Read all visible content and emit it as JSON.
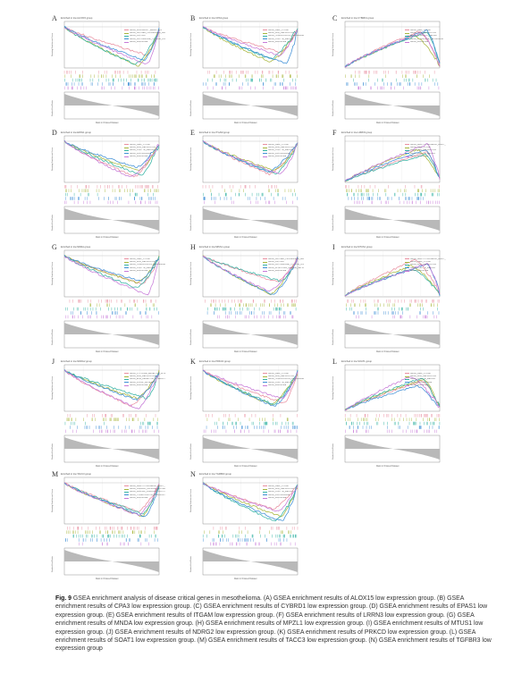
{
  "figure": {
    "caption_label": "Fig. 9",
    "caption_text": "GSEA enrichment analysis of disease critical genes in mesothelioma. (A) GSEA enrichment results of ALOX15 low expression group. (B) GSEA enrichment results of CPA3 low expression group. (C) GSEA enrichment results of CYBRD1 low expression group. (D) GSEA enrichment results of EPAS1 low expression group. (E) GSEA enrichment results of ITGAM low expression group. (F) GSEA enrichment results of LRRN3 low expression group. (G) GSEA enrichment results of MNDA low expression group. (H) GSEA enrichment results of MPZL1 low expression group. (I) GSEA enrichment results of MTUS1 low expression group. (J) GSEA enrichment results of NDRG2 low expression group. (K) GSEA enrichment results of PRKCD low expression group. (L) GSEA enrichment results of SOAT1 low expression group. (M) GSEA enrichment results of TACC3 low expression group. (N) GSEA enrichment results of TGFBR3 low expression group",
    "axis_labels": {
      "y_top": "Running Enrichment Score",
      "y_bottom": "Ranked List Metric",
      "x": "Rank in Ordered Dataset"
    },
    "colors": [
      "#e98fa0",
      "#a8b63c",
      "#35b3a4",
      "#3f8fd6",
      "#c77ad8"
    ],
    "panels": [
      {
        "letter": "A",
        "title": "Enriched in low ALOX15 group",
        "legend": [
          "KEGG_ALLOGRAFT_REJECTION",
          "KEGG_ANTIGEN_PROCESSING_AND_PRESENTATION",
          "KEGG_ASTHMA",
          "KEGG_AUTOIMMUNE_THYROID_DISEASE",
          "KEGG_RIBOSOME"
        ]
      },
      {
        "letter": "B",
        "title": "Enriched in low CPA3 group",
        "legend": [
          "KEGG_CELL_CYCLE",
          "KEGG_DNA_REPLICATION",
          "KEGG_HOMOLOGOUS_RECOMBINATION",
          "KEGG_OOCYTE_MEIOSIS",
          "KEGG_RIBOSOME"
        ]
      },
      {
        "letter": "C",
        "title": "Enriched in low CYBRD1 group",
        "legend": [
          "KEGG_CELL_CYCLE",
          "KEGG_DNA_REPLICATION",
          "KEGG_MISMATCH_REPAIR",
          "KEGG_PYRIMIDINE_METABOLISM",
          "KEGG_RIBOSOME"
        ]
      },
      {
        "letter": "D",
        "title": "Enriched in low EPAS1 group",
        "legend": [
          "KEGG_CELL_CYCLE",
          "KEGG_DNA_REPLICATION",
          "KEGG_OOCYTE_MEIOSIS",
          "KEGG_PROTEASOME",
          "KEGG_RIBOSOME"
        ]
      },
      {
        "letter": "E",
        "title": "Enriched in low ITGAM group",
        "legend": [
          "KEGG_CELL_CYCLE",
          "KEGG_DNA_REPLICATION",
          "KEGG_OOCYTE_MEIOSIS",
          "KEGG_PROTEASOME",
          "KEGG_RIBOSOME"
        ]
      },
      {
        "letter": "F",
        "title": "Enriched in low LRRN3 group",
        "legend": [
          "KEGG_ARRHYTHMOGENIC_RIGHT_VENTRICULAR",
          "KEGG_CELL_CYCLE",
          "KEGG_DNA_REPLICATION",
          "KEGG_OOCYTE_MEIOSIS",
          "KEGG_RIBOSOME"
        ]
      },
      {
        "letter": "G",
        "title": "Enriched in low MNDA group",
        "legend": [
          "KEGG_CELL_CYCLE",
          "KEGG_DNA_REPLICATION",
          "KEGG_HOMOLOGOUS_RECOMBINATION",
          "KEGG_OOCYTE_MEIOSIS",
          "KEGG_RIBOSOME"
        ]
      },
      {
        "letter": "H",
        "title": "Enriched in low MPZL1 group",
        "legend": [
          "KEGG_ANTIGEN_PROCESSING_AND_PRESENTATION",
          "KEGG_ASTHMA",
          "KEGG_AUTOIMMUNE_THYROID_DISEASE",
          "KEGG_INTESTINAL_IMMUNE_NETWORK",
          "KEGG_RIBOSOME"
        ]
      },
      {
        "letter": "I",
        "title": "Enriched in low MTUS1 group",
        "legend": [
          "KEGG_ARRHYTHMOGENIC_RIGHT_VENTRICULAR",
          "KEGG_CELL_CYCLE",
          "KEGG_DNA_REPLICATION",
          "KEGG_OOCYTE_MEIOSIS",
          "KEGG_RIBOSOME"
        ]
      },
      {
        "letter": "J",
        "title": "Enriched in low NDRG2 group",
        "legend": [
          "KEGG_CYTOKINE_RECEPTOR_INTERACTION",
          "KEGG_DNA_REPLICATION",
          "KEGG_ECM_RECEPTOR_INTERACTION",
          "KEGG_FOCAL_ADHESION",
          "KEGG_RIBOSOME"
        ]
      },
      {
        "letter": "K",
        "title": "Enriched in low PRKCD group",
        "legend": [
          "KEGG_CELL_CYCLE",
          "KEGG_DNA_REPLICATION",
          "KEGG_HOMOLOGOUS_RECOMBINATION",
          "KEGG_OOCYTE_MEIOSIS",
          "KEGG_RIBOSOME"
        ]
      },
      {
        "letter": "L",
        "title": "Enriched in low SOAT1 group",
        "legend": [
          "KEGG_CELL_CYCLE",
          "KEGG_DNA_REPLICATION",
          "KEGG_OOCYTE_MEIOSIS",
          "KEGG_PROTEASOME",
          "KEGG_RIBOSOME"
        ]
      },
      {
        "letter": "M",
        "title": "Enriched in low TACC3 group",
        "legend": [
          "KEGG_ARRHYTHMOGENIC_RIGHT_VENTRICULAR",
          "KEGG_CARDIAC_MUSCLE_CONTRACTION",
          "KEGG_DILATED_CARDIOMYOPATHY",
          "KEGG_HYPERTROPHIC_CARDIOMYOPATHY",
          "KEGG_RIBOSOME"
        ]
      },
      {
        "letter": "N",
        "title": "Enriched in low TGFBR3 group",
        "legend": [
          "KEGG_CELL_CYCLE",
          "KEGG_DNA_REPLICATION",
          "KEGG_OOCYTE_MEIOSIS",
          "KEGG_PROTEASOME",
          "KEGG_RIBOSOME"
        ]
      }
    ]
  }
}
